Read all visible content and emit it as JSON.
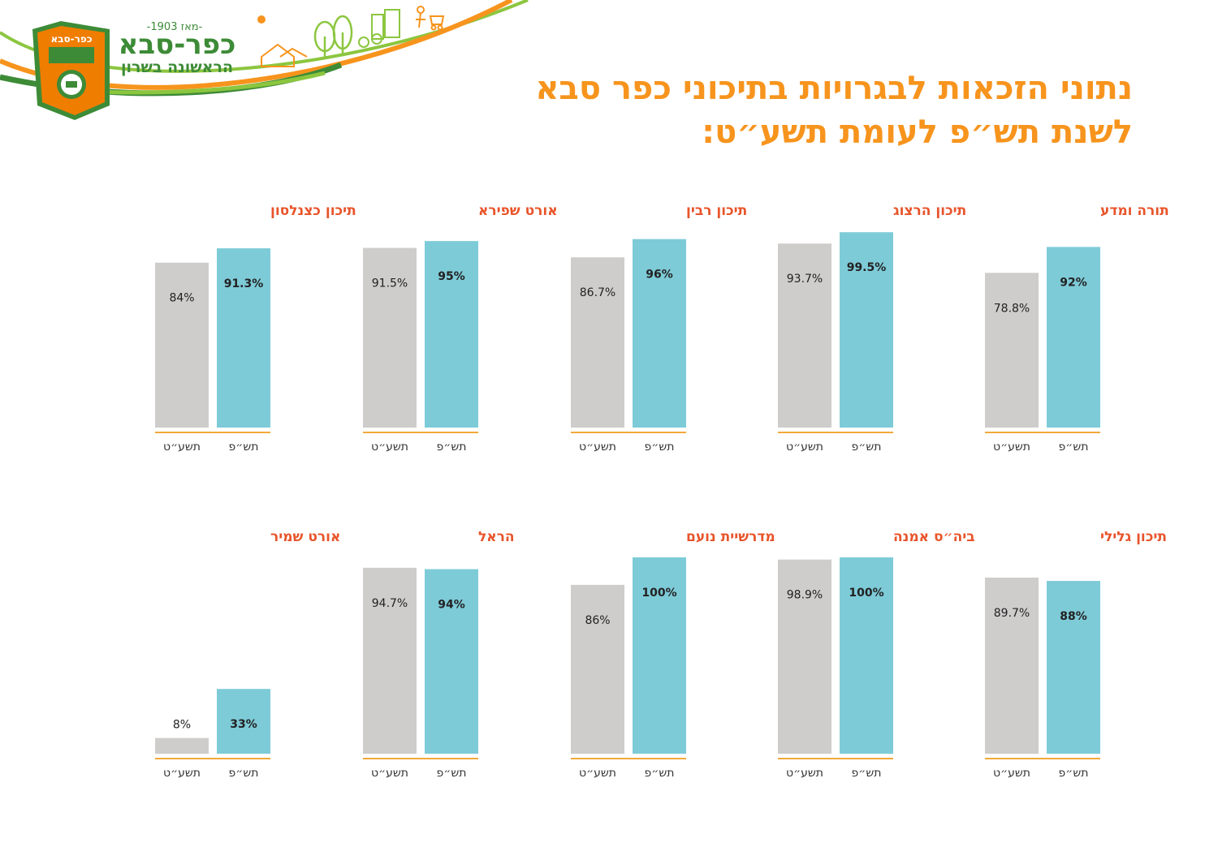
{
  "header": {
    "logo_name": "כפר-סבא",
    "since": "-מאז 1903-",
    "tagline": "הראשונה בשרון",
    "badge_top": "כפר-סבא"
  },
  "title": {
    "line1": "נתוני הזכאות לבגרויות בתיכוני כפר סבא",
    "line2": "לשנת תש״פ לעומת תשע״ט:"
  },
  "colors": {
    "accent": "#f7941d",
    "school_title": "#e8542a",
    "bar_prev": "#cfcccc",
    "bar_curr": "#7ecbd8",
    "baseline": "#f2a93b",
    "logo_green": "#3d8b37",
    "logo_orange": "#ef7d00"
  },
  "chart_data": [
    {
      "type": "bar",
      "title": "תורה ומדע",
      "categories": [
        "תשע״ט",
        "תש״פ"
      ],
      "values": [
        78.8,
        92
      ],
      "labels": [
        "78.8%",
        "92%"
      ],
      "ylim": [
        0,
        100
      ]
    },
    {
      "type": "bar",
      "title": "תיכון הרצוג",
      "categories": [
        "תשע״ט",
        "תש״פ"
      ],
      "values": [
        93.7,
        99.5
      ],
      "labels": [
        "93.7%",
        "99.5%"
      ],
      "ylim": [
        0,
        100
      ]
    },
    {
      "type": "bar",
      "title": "תיכון רבין",
      "categories": [
        "תשע״ט",
        "תש״פ"
      ],
      "values": [
        86.7,
        96
      ],
      "labels": [
        "86.7%",
        "96%"
      ],
      "ylim": [
        0,
        100
      ]
    },
    {
      "type": "bar",
      "title": "אורט שפירא",
      "categories": [
        "תשע״ט",
        "תש״פ"
      ],
      "values": [
        91.5,
        95
      ],
      "labels": [
        "91.5%",
        "95%"
      ],
      "ylim": [
        0,
        100
      ]
    },
    {
      "type": "bar",
      "title": "תיכון כצנלסון",
      "categories": [
        "תשע״ט",
        "תש״פ"
      ],
      "values": [
        84,
        91.3
      ],
      "labels": [
        "84%",
        "91.3%"
      ],
      "ylim": [
        0,
        100
      ]
    },
    {
      "type": "bar",
      "title": "תיכון גלילי",
      "categories": [
        "תשע״ט",
        "תש״פ"
      ],
      "values": [
        89.7,
        88
      ],
      "labels": [
        "89.7%",
        "88%"
      ],
      "ylim": [
        0,
        100
      ]
    },
    {
      "type": "bar",
      "title": "ביה״ס אמנה",
      "categories": [
        "תשע״ט",
        "תש״פ"
      ],
      "values": [
        98.9,
        100
      ],
      "labels": [
        "98.9%",
        "100%"
      ],
      "ylim": [
        0,
        100
      ]
    },
    {
      "type": "bar",
      "title": "מדרשיית נועם",
      "categories": [
        "תשע״ט",
        "תש״פ"
      ],
      "values": [
        86,
        100
      ],
      "labels": [
        "86%",
        "100%"
      ],
      "ylim": [
        0,
        100
      ]
    },
    {
      "type": "bar",
      "title": "הראל",
      "categories": [
        "תשע״ט",
        "תש״פ"
      ],
      "values": [
        94.7,
        94
      ],
      "labels": [
        "94.7%",
        "94%"
      ],
      "ylim": [
        0,
        100
      ]
    },
    {
      "type": "bar",
      "title": "אורט שמיר",
      "categories": [
        "תשע״ט",
        "תש״פ"
      ],
      "values": [
        8,
        33
      ],
      "labels": [
        "8%",
        "33%"
      ],
      "ylim": [
        0,
        100
      ]
    }
  ]
}
